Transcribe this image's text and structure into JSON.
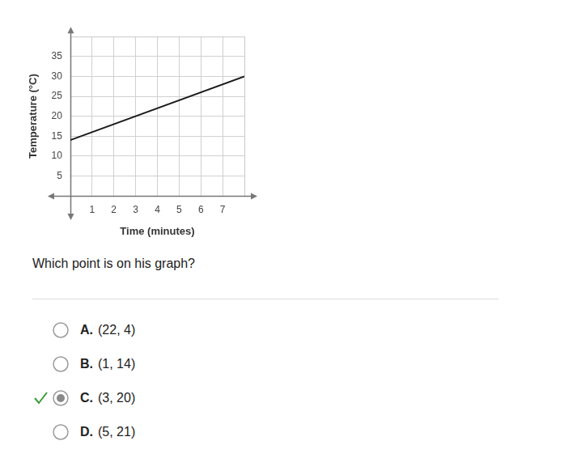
{
  "chart_data": {
    "type": "line",
    "x": [
      0,
      8
    ],
    "values": [
      14,
      30
    ],
    "color": "#1a1a1a",
    "xlabel": "Time (minutes)",
    "ylabel": "Temperature (°C)",
    "xlim": [
      0,
      8
    ],
    "xticks": [
      1,
      2,
      3,
      4,
      5,
      6,
      7
    ],
    "ylim": [
      0,
      40
    ],
    "yticks": [
      5,
      10,
      15,
      20,
      25,
      30,
      35
    ],
    "grid": true
  },
  "question": "Which point is on his graph?",
  "options": [
    {
      "letter": "A.",
      "text": "(22, 4)"
    },
    {
      "letter": "B.",
      "text": "(1, 14)"
    },
    {
      "letter": "C.",
      "text": "(3, 20)"
    },
    {
      "letter": "D.",
      "text": "(5, 21)"
    }
  ],
  "selected": "C."
}
